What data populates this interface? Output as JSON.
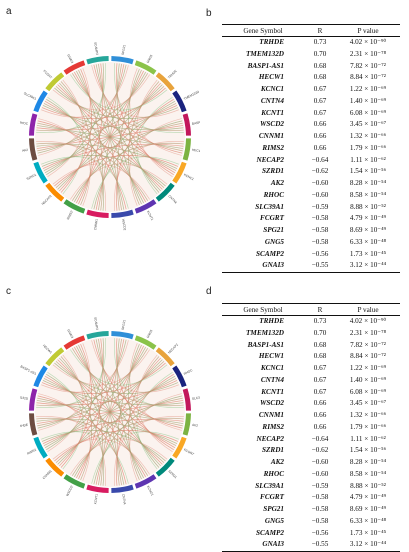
{
  "panels": {
    "a": "a",
    "b": "b",
    "c": "c",
    "d": "d"
  },
  "circos_a": {
    "labels": [
      "SPG21",
      "GNG5",
      "TRHDE",
      "TMEM132D",
      "BASP1-AS1",
      "HECW1",
      "KCNC1",
      "CNTN4",
      "KCNT1",
      "WSCD2",
      "CNNM1",
      "RIMS2",
      "NECAP2",
      "SZRD1",
      "AK2",
      "RHOC",
      "SLC39A1",
      "FCGRT",
      "GNAI3",
      "SCAMP2"
    ],
    "colors": [
      "#2f8fd8",
      "#8bc34a",
      "#e8a33c",
      "#1a237e",
      "#c2185b",
      "#7cb342",
      "#f9a825",
      "#00897b",
      "#5e35b1",
      "#3949ab",
      "#d81b60",
      "#43a047",
      "#fb8c00",
      "#00acc1",
      "#6d4c41",
      "#8e24aa",
      "#1e88e5",
      "#c0ca33",
      "#e53935",
      "#26a69a"
    ]
  },
  "circos_c": {
    "labels": [
      "SPG21",
      "GNG5",
      "NECAP2",
      "RHOC",
      "SLC39A1",
      "AK2",
      "FCGRT",
      "SZRD1",
      "KCNC1",
      "CNTN4",
      "KCNT1",
      "WSCD2",
      "CNNM1",
      "RIMS2",
      "TRHDE",
      "TMEM132D",
      "BASP1-AS1",
      "HECW1",
      "GNAI3",
      "SCAMP2"
    ],
    "colors": [
      "#2f8fd8",
      "#8bc34a",
      "#e8a33c",
      "#1a237e",
      "#c2185b",
      "#7cb342",
      "#f9a825",
      "#00897b",
      "#5e35b1",
      "#3949ab",
      "#d81b60",
      "#43a047",
      "#fb8c00",
      "#00acc1",
      "#6d4c41",
      "#8e24aa",
      "#1e88e5",
      "#c0ca33",
      "#e53935",
      "#26a69a"
    ]
  },
  "table_headers": {
    "gene": "Gene Symbol",
    "r": "R",
    "p": "P value"
  },
  "table_b": [
    {
      "gene": "TRHDE",
      "r": "0.73",
      "p": "4.02 × 10⁻⁹⁰"
    },
    {
      "gene": "TMEM132D",
      "r": "0.70",
      "p": "2.31 × 10⁻⁷⁸"
    },
    {
      "gene": "BASP1-AS1",
      "r": "0.68",
      "p": "7.82 × 10⁻⁷²"
    },
    {
      "gene": "HECW1",
      "r": "0.68",
      "p": "8.84 × 10⁻⁷²"
    },
    {
      "gene": "KCNC1",
      "r": "0.67",
      "p": "1.22 × 10⁻⁶⁹"
    },
    {
      "gene": "CNTN4",
      "r": "0.67",
      "p": "1.40 × 10⁻⁶⁹"
    },
    {
      "gene": "KCNT1",
      "r": "0.67",
      "p": "6.08 × 10⁻⁶⁹"
    },
    {
      "gene": "WSCD2",
      "r": "0.66",
      "p": "3.45 × 10⁻⁶⁷"
    },
    {
      "gene": "CNNM1",
      "r": "0.66",
      "p": "1.32 × 10⁻⁶⁶"
    },
    {
      "gene": "RIMS2",
      "r": "0.66",
      "p": "1.79 × 10⁻⁶⁶"
    },
    {
      "gene": "NECAP2",
      "r": "−0.64",
      "p": "1.11 × 10⁻⁶²"
    },
    {
      "gene": "SZRD1",
      "r": "−0.62",
      "p": "1.54 × 10⁻⁵⁶"
    },
    {
      "gene": "AK2",
      "r": "−0.60",
      "p": "8.28 × 10⁻⁵⁴"
    },
    {
      "gene": "RHOC",
      "r": "−0.60",
      "p": "8.58 × 10⁻⁵⁴"
    },
    {
      "gene": "SLC39A1",
      "r": "−0.59",
      "p": "8.88 × 10⁻⁵²"
    },
    {
      "gene": "FCGRT",
      "r": "−0.58",
      "p": "4.79 × 10⁻⁴⁹"
    },
    {
      "gene": "SPG21",
      "r": "−0.58",
      "p": "8.69 × 10⁻⁴⁹"
    },
    {
      "gene": "GNG5",
      "r": "−0.58",
      "p": "6.33 × 10⁻⁴⁸"
    },
    {
      "gene": "SCAMP2",
      "r": "−0.56",
      "p": "1.73 × 10⁻⁴⁵"
    },
    {
      "gene": "GNAI3",
      "r": "−0.55",
      "p": "3.12 × 10⁻⁴⁴"
    }
  ],
  "table_d": [
    {
      "gene": "TRHDE",
      "r": "0.73",
      "p": "4.02 × 10⁻⁹⁰"
    },
    {
      "gene": "TMEM132D",
      "r": "0.70",
      "p": "2.31 × 10⁻⁷⁸"
    },
    {
      "gene": "BASP1-AS1",
      "r": "0.68",
      "p": "7.82 × 10⁻⁷²"
    },
    {
      "gene": "HECW1",
      "r": "0.68",
      "p": "8.84 × 10⁻⁷²"
    },
    {
      "gene": "KCNC1",
      "r": "0.67",
      "p": "1.22 × 10⁻⁶⁹"
    },
    {
      "gene": "CNTN4",
      "r": "0.67",
      "p": "1.40 × 10⁻⁶⁹"
    },
    {
      "gene": "KCNT1",
      "r": "0.67",
      "p": "6.08 × 10⁻⁶⁹"
    },
    {
      "gene": "WSCD2",
      "r": "0.66",
      "p": "3.45 × 10⁻⁶⁷"
    },
    {
      "gene": "CNNM1",
      "r": "0.66",
      "p": "1.32 × 10⁻⁶⁶"
    },
    {
      "gene": "RIMS2",
      "r": "0.66",
      "p": "1.79 × 10⁻⁶⁶"
    },
    {
      "gene": "NECAP2",
      "r": "−0.64",
      "p": "1.11 × 10⁻⁶²"
    },
    {
      "gene": "SZRD1",
      "r": "−0.62",
      "p": "1.54 × 10⁻⁵⁶"
    },
    {
      "gene": "AK2",
      "r": "−0.60",
      "p": "8.28 × 10⁻⁵⁴"
    },
    {
      "gene": "RHOC",
      "r": "−0.60",
      "p": "8.58 × 10⁻⁵⁴"
    },
    {
      "gene": "SLC39A1",
      "r": "−0.59",
      "p": "8.88 × 10⁻⁵²"
    },
    {
      "gene": "FCGRT",
      "r": "−0.58",
      "p": "4.79 × 10⁻⁴⁹"
    },
    {
      "gene": "SPG21",
      "r": "−0.58",
      "p": "8.69 × 10⁻⁴⁹"
    },
    {
      "gene": "GNG5",
      "r": "−0.58",
      "p": "6.33 × 10⁻⁴⁸"
    },
    {
      "gene": "SCAMP2",
      "r": "−0.56",
      "p": "1.73 × 10⁻⁴⁵"
    },
    {
      "gene": "GNAI3",
      "r": "−0.55",
      "p": "3.12 × 10⁻⁴⁴"
    }
  ]
}
